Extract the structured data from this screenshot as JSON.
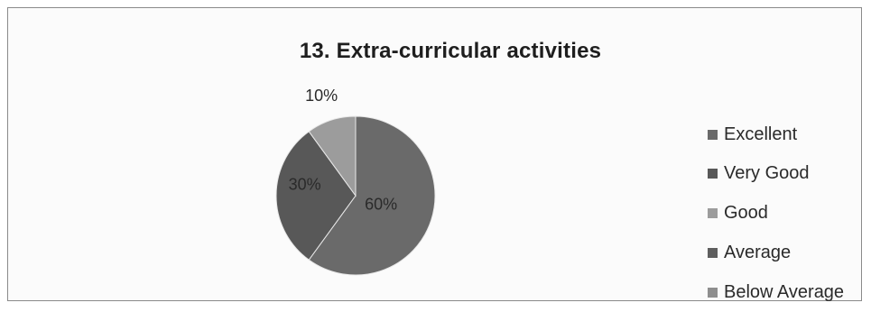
{
  "chart_data": {
    "type": "pie",
    "title": "13. Extra-curricular activities",
    "slices": [
      {
        "label": "Excellent",
        "value": 60,
        "display": "60%",
        "color": "#6a6a6a"
      },
      {
        "label": "Very Good",
        "value": 30,
        "display": "30%",
        "color": "#585858"
      },
      {
        "label": "Good",
        "value": 10,
        "display": "10%",
        "color": "#9c9c9c"
      },
      {
        "label": "Average",
        "value": 0,
        "display": "",
        "color": "#5e5e5e"
      },
      {
        "label": "Below Average",
        "value": 0,
        "display": "",
        "color": "#8e8e8e"
      }
    ],
    "legend_position": "right"
  }
}
